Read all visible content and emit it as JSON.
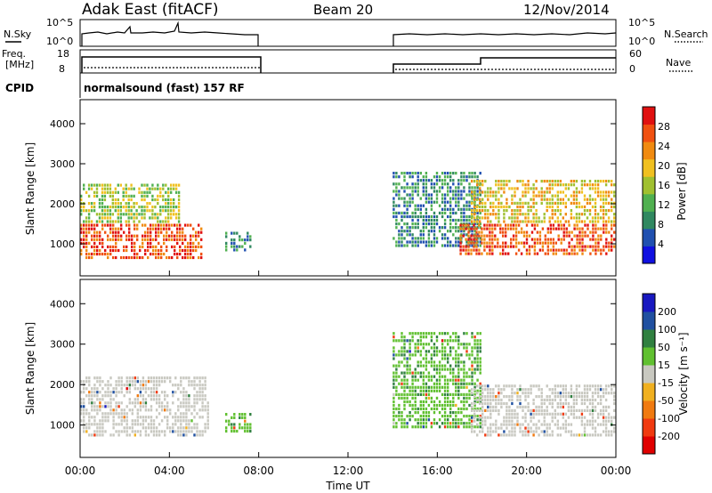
{
  "header": {
    "station": "Adak East (fitACF)",
    "beam": "Beam 20",
    "date": "12/Nov/2014"
  },
  "params": {
    "nsky_label": "N.Sky",
    "nsky_ticks": [
      "10^5",
      "10^0"
    ],
    "nsearch_label": "N.Search",
    "nsearch_ticks": [
      "10^5",
      "10^0"
    ],
    "freq_label_1": "Freq.",
    "freq_label_2": "[MHz]",
    "freq_ticks": [
      "18",
      "8"
    ],
    "nave_label": "Nave",
    "nave_ticks": [
      "60",
      "0"
    ],
    "cpid_label": "CPID",
    "cpid_text": "normalsound (fast) 157 RF"
  },
  "colors": {
    "power": [
      "#1010e0",
      "#2050b0",
      "#308860",
      "#50b050",
      "#a0c030",
      "#f0c020",
      "#f08a10",
      "#f05010",
      "#e01010"
    ],
    "velocity": [
      "#e00000",
      "#f03a10",
      "#f07a10",
      "#f0b020",
      "#c8c8c0",
      "#60c030",
      "#308040",
      "#2050a0",
      "#1818c0"
    ]
  },
  "chart_data": [
    {
      "type": "heatmap",
      "panel": "power",
      "ylabel": "Slant Range [km]",
      "ylim": [
        200,
        4600
      ],
      "yticks": [
        "1000",
        "2000",
        "3000",
        "4000"
      ],
      "xlim_hours": [
        0,
        24
      ],
      "colorbar_label": "Power [dB]",
      "colorbar_range": [
        0,
        32
      ],
      "colorbar_ticks": [
        "4",
        "8",
        "12",
        "16",
        "20",
        "24",
        "28"
      ],
      "echo_regions": [
        {
          "t_start": 0.0,
          "t_end": 5.5,
          "range_km": [
            600,
            1500
          ],
          "value_db": 26
        },
        {
          "t_start": 0.0,
          "t_end": 4.5,
          "range_km": [
            1500,
            2500
          ],
          "value_db": 14
        },
        {
          "t_start": 6.5,
          "t_end": 7.7,
          "range_km": [
            800,
            1300
          ],
          "value_db": 6
        },
        {
          "t_start": 14.0,
          "t_end": 18.0,
          "range_km": [
            900,
            2800
          ],
          "value_db": 7
        },
        {
          "t_start": 17.0,
          "t_end": 24.0,
          "range_km": [
            700,
            1500
          ],
          "value_db": 28
        },
        {
          "t_start": 17.5,
          "t_end": 24.0,
          "range_km": [
            1500,
            2600
          ],
          "value_db": 20
        }
      ]
    },
    {
      "type": "heatmap",
      "panel": "velocity",
      "xlabel": "Time UT",
      "ylabel": "Slant Range [km]",
      "ylim": [
        200,
        4600
      ],
      "yticks": [
        "1000",
        "2000",
        "3000",
        "4000"
      ],
      "xlim_hours": [
        0,
        24
      ],
      "xticks": [
        "00:00",
        "04:00",
        "08:00",
        "12:00",
        "16:00",
        "20:00",
        "00:00"
      ],
      "colorbar_label": "Velocity [m s⁻¹]",
      "colorbar_ticks": [
        "200",
        "100",
        "50",
        "15",
        "-15",
        "-50",
        "-100",
        "-200"
      ],
      "echo_regions": [
        {
          "t_start": 0.0,
          "t_end": 5.8,
          "range_km": [
            700,
            2200
          ],
          "value_ms": 0
        },
        {
          "t_start": 6.5,
          "t_end": 7.7,
          "range_km": [
            800,
            1300
          ],
          "value_ms": 40
        },
        {
          "t_start": 14.0,
          "t_end": 18.0,
          "range_km": [
            900,
            3300
          ],
          "value_ms": 40
        },
        {
          "t_start": 17.5,
          "t_end": 24.0,
          "range_km": [
            700,
            2000
          ],
          "value_ms": 0
        }
      ]
    }
  ]
}
